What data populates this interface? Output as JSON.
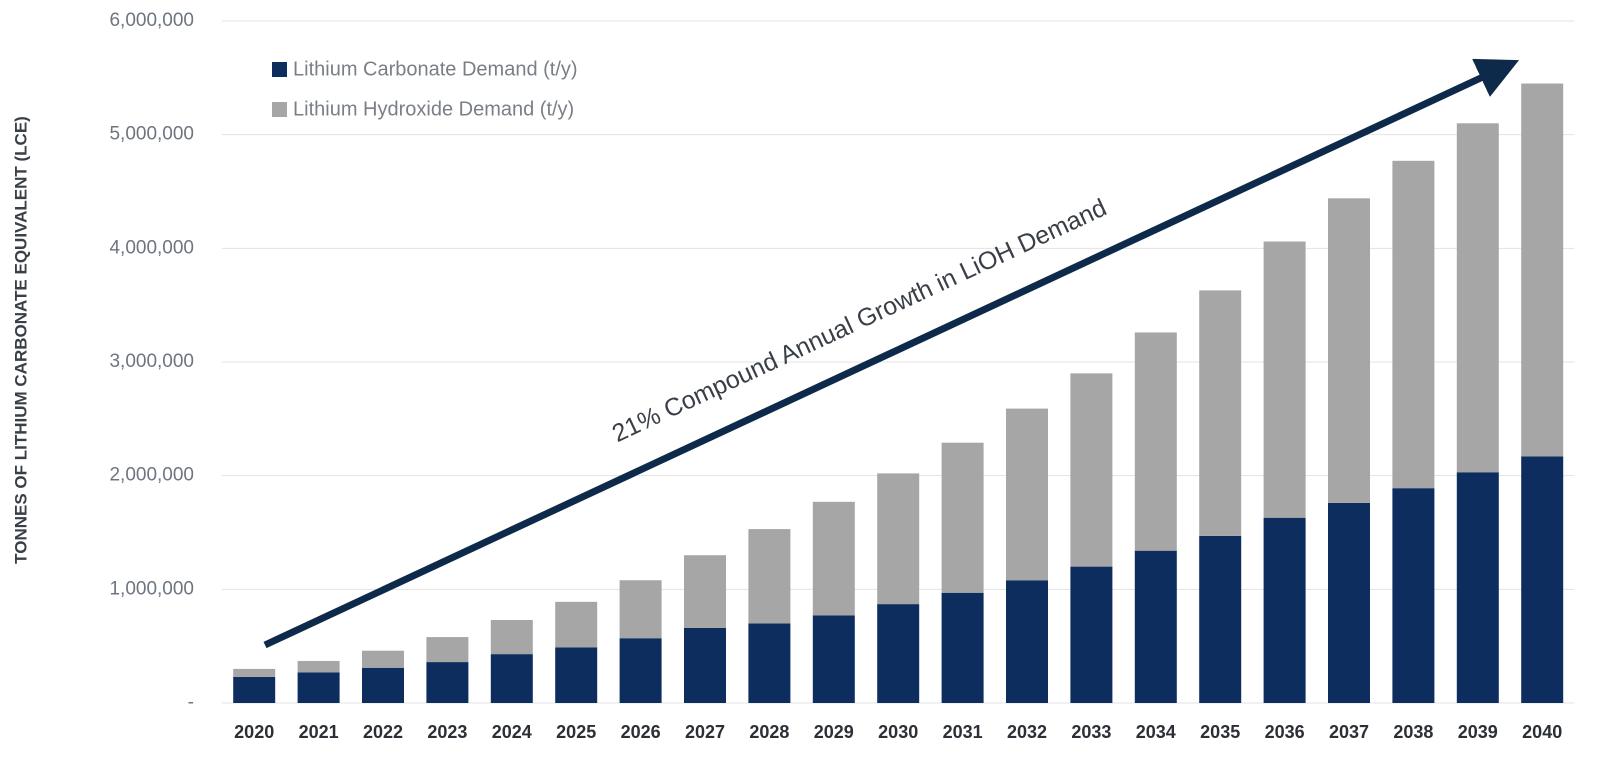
{
  "chart_data": {
    "type": "stacked_bar",
    "y_axis_label": "TONNES OF LITHIUM CARBONATE EQUIVALENT (LCE)",
    "annotation": "21% Compound Annual Growth in LiOH Demand",
    "categories": [
      "2020",
      "2021",
      "2022",
      "2023",
      "2024",
      "2025",
      "2026",
      "2027",
      "2028",
      "2029",
      "2030",
      "2031",
      "2032",
      "2033",
      "2034",
      "2035",
      "2036",
      "2037",
      "2038",
      "2039",
      "2040"
    ],
    "series": [
      {
        "name": "Lithium Carbonate Demand (t/y)",
        "color": "#0d2d5e",
        "values": [
          230000,
          270000,
          310000,
          360000,
          430000,
          490000,
          570000,
          660000,
          700000,
          770000,
          870000,
          970000,
          1080000,
          1200000,
          1340000,
          1470000,
          1630000,
          1760000,
          1890000,
          2030000,
          2170000
        ]
      },
      {
        "name": "Lithium Hydroxide Demand (t/y)",
        "color": "#a6a6a6",
        "values": [
          70000,
          100000,
          150000,
          220000,
          300000,
          400000,
          510000,
          640000,
          830000,
          1000000,
          1150000,
          1320000,
          1510000,
          1700000,
          1920000,
          2160000,
          2430000,
          2680000,
          2880000,
          3070000,
          3280000
        ]
      }
    ],
    "ylim": [
      0,
      6000000
    ],
    "yticks": [
      {
        "value": 0,
        "label": "-"
      },
      {
        "value": 1000000,
        "label": "1,000,000"
      },
      {
        "value": 2000000,
        "label": "2,000,000"
      },
      {
        "value": 3000000,
        "label": "3,000,000"
      },
      {
        "value": 4000000,
        "label": "4,000,000"
      },
      {
        "value": 5000000,
        "label": "5,000,000"
      },
      {
        "value": 6000000,
        "label": "6,000,000"
      }
    ],
    "grid": true,
    "legend": "top-left"
  }
}
